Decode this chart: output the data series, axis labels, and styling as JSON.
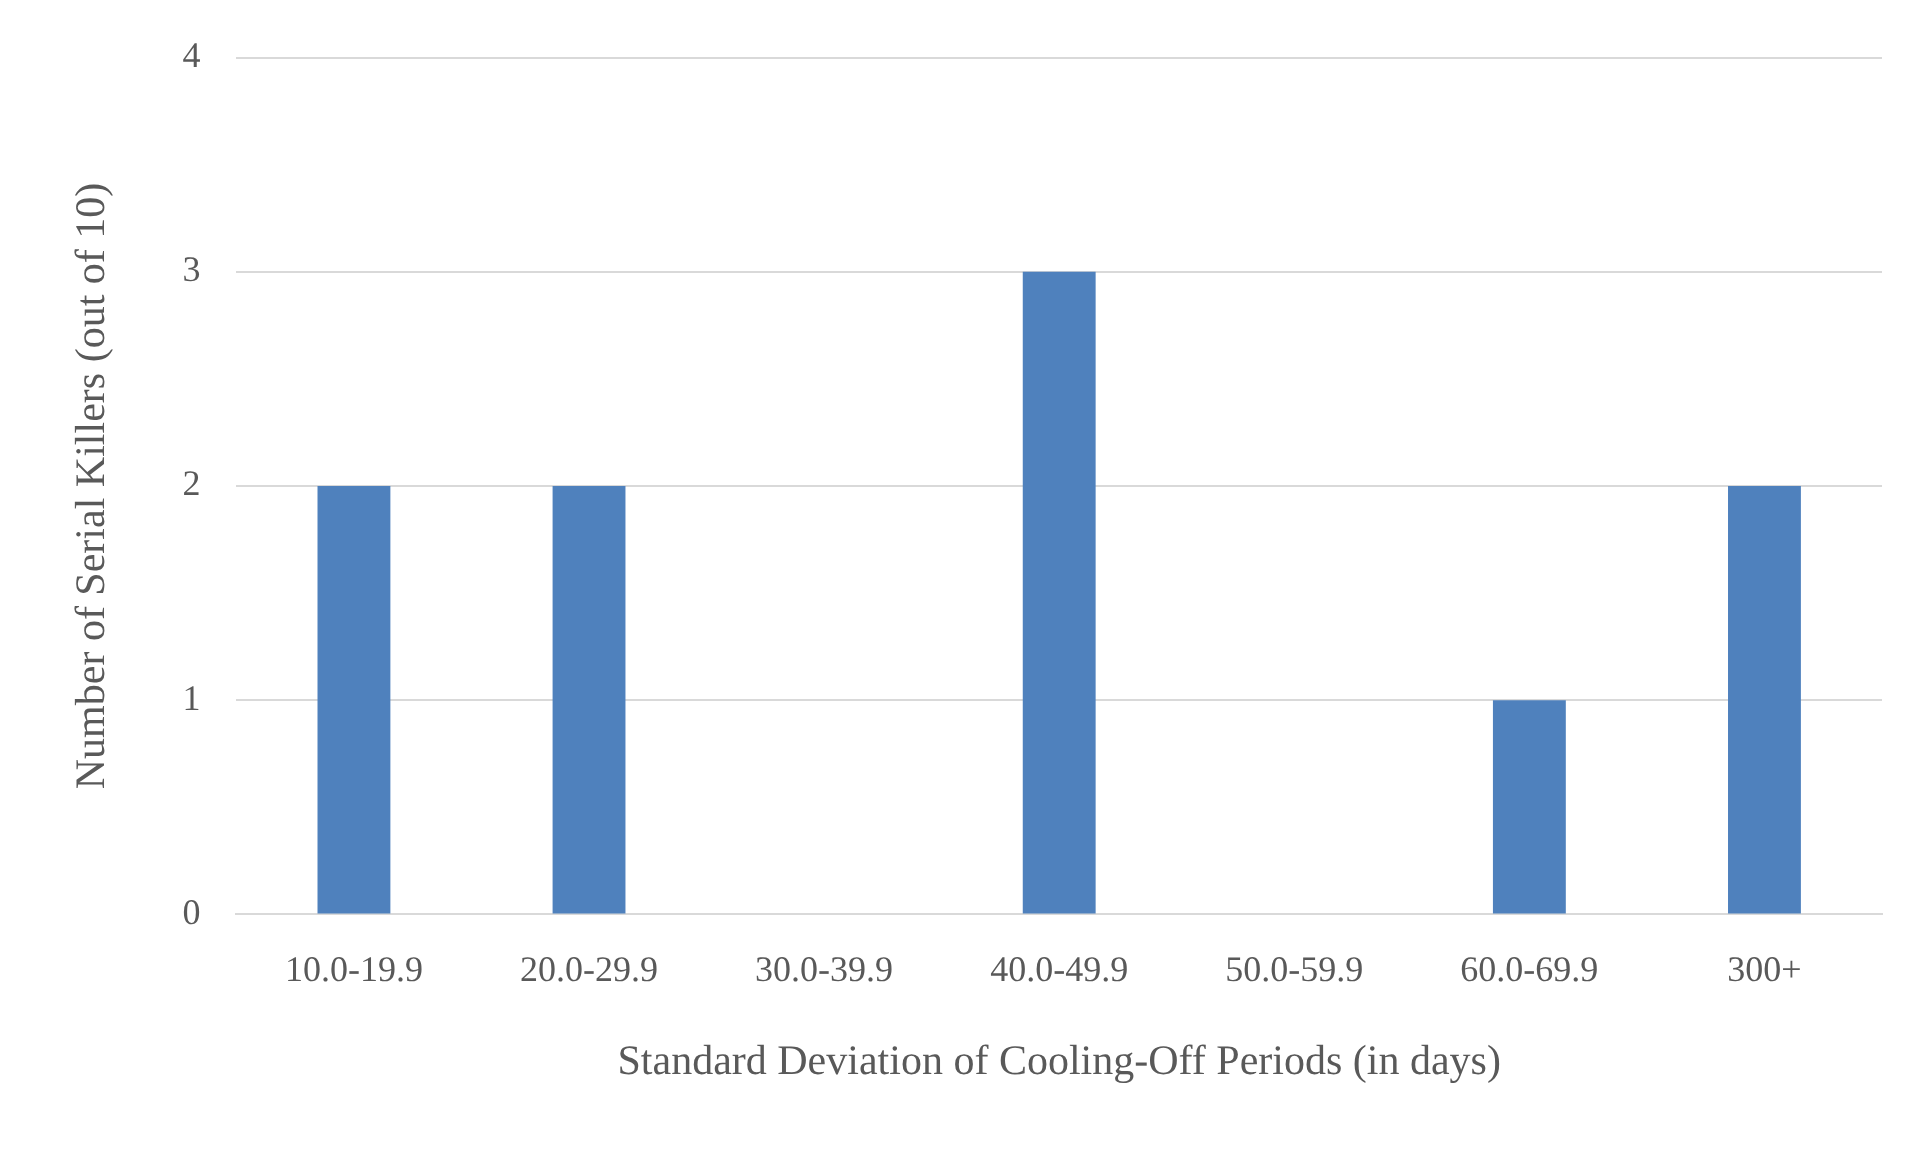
{
  "chart_data": {
    "type": "bar",
    "xlabel": "Standard Deviation of Cooling-Off Periods (in days)",
    "ylabel": "Number of Serial Killers (out of 10)",
    "categories": [
      "10.0-19.9",
      "20.0-29.9",
      "30.0-39.9",
      "40.0-49.9",
      "50.0-59.9",
      "60.0-69.9",
      "300+"
    ],
    "values": [
      2,
      2,
      0,
      3,
      0,
      1,
      2
    ],
    "color": "#4f81bd",
    "ylim": [
      0,
      4
    ],
    "yticks": [
      0,
      1,
      2,
      3,
      4
    ],
    "grid": "y"
  }
}
